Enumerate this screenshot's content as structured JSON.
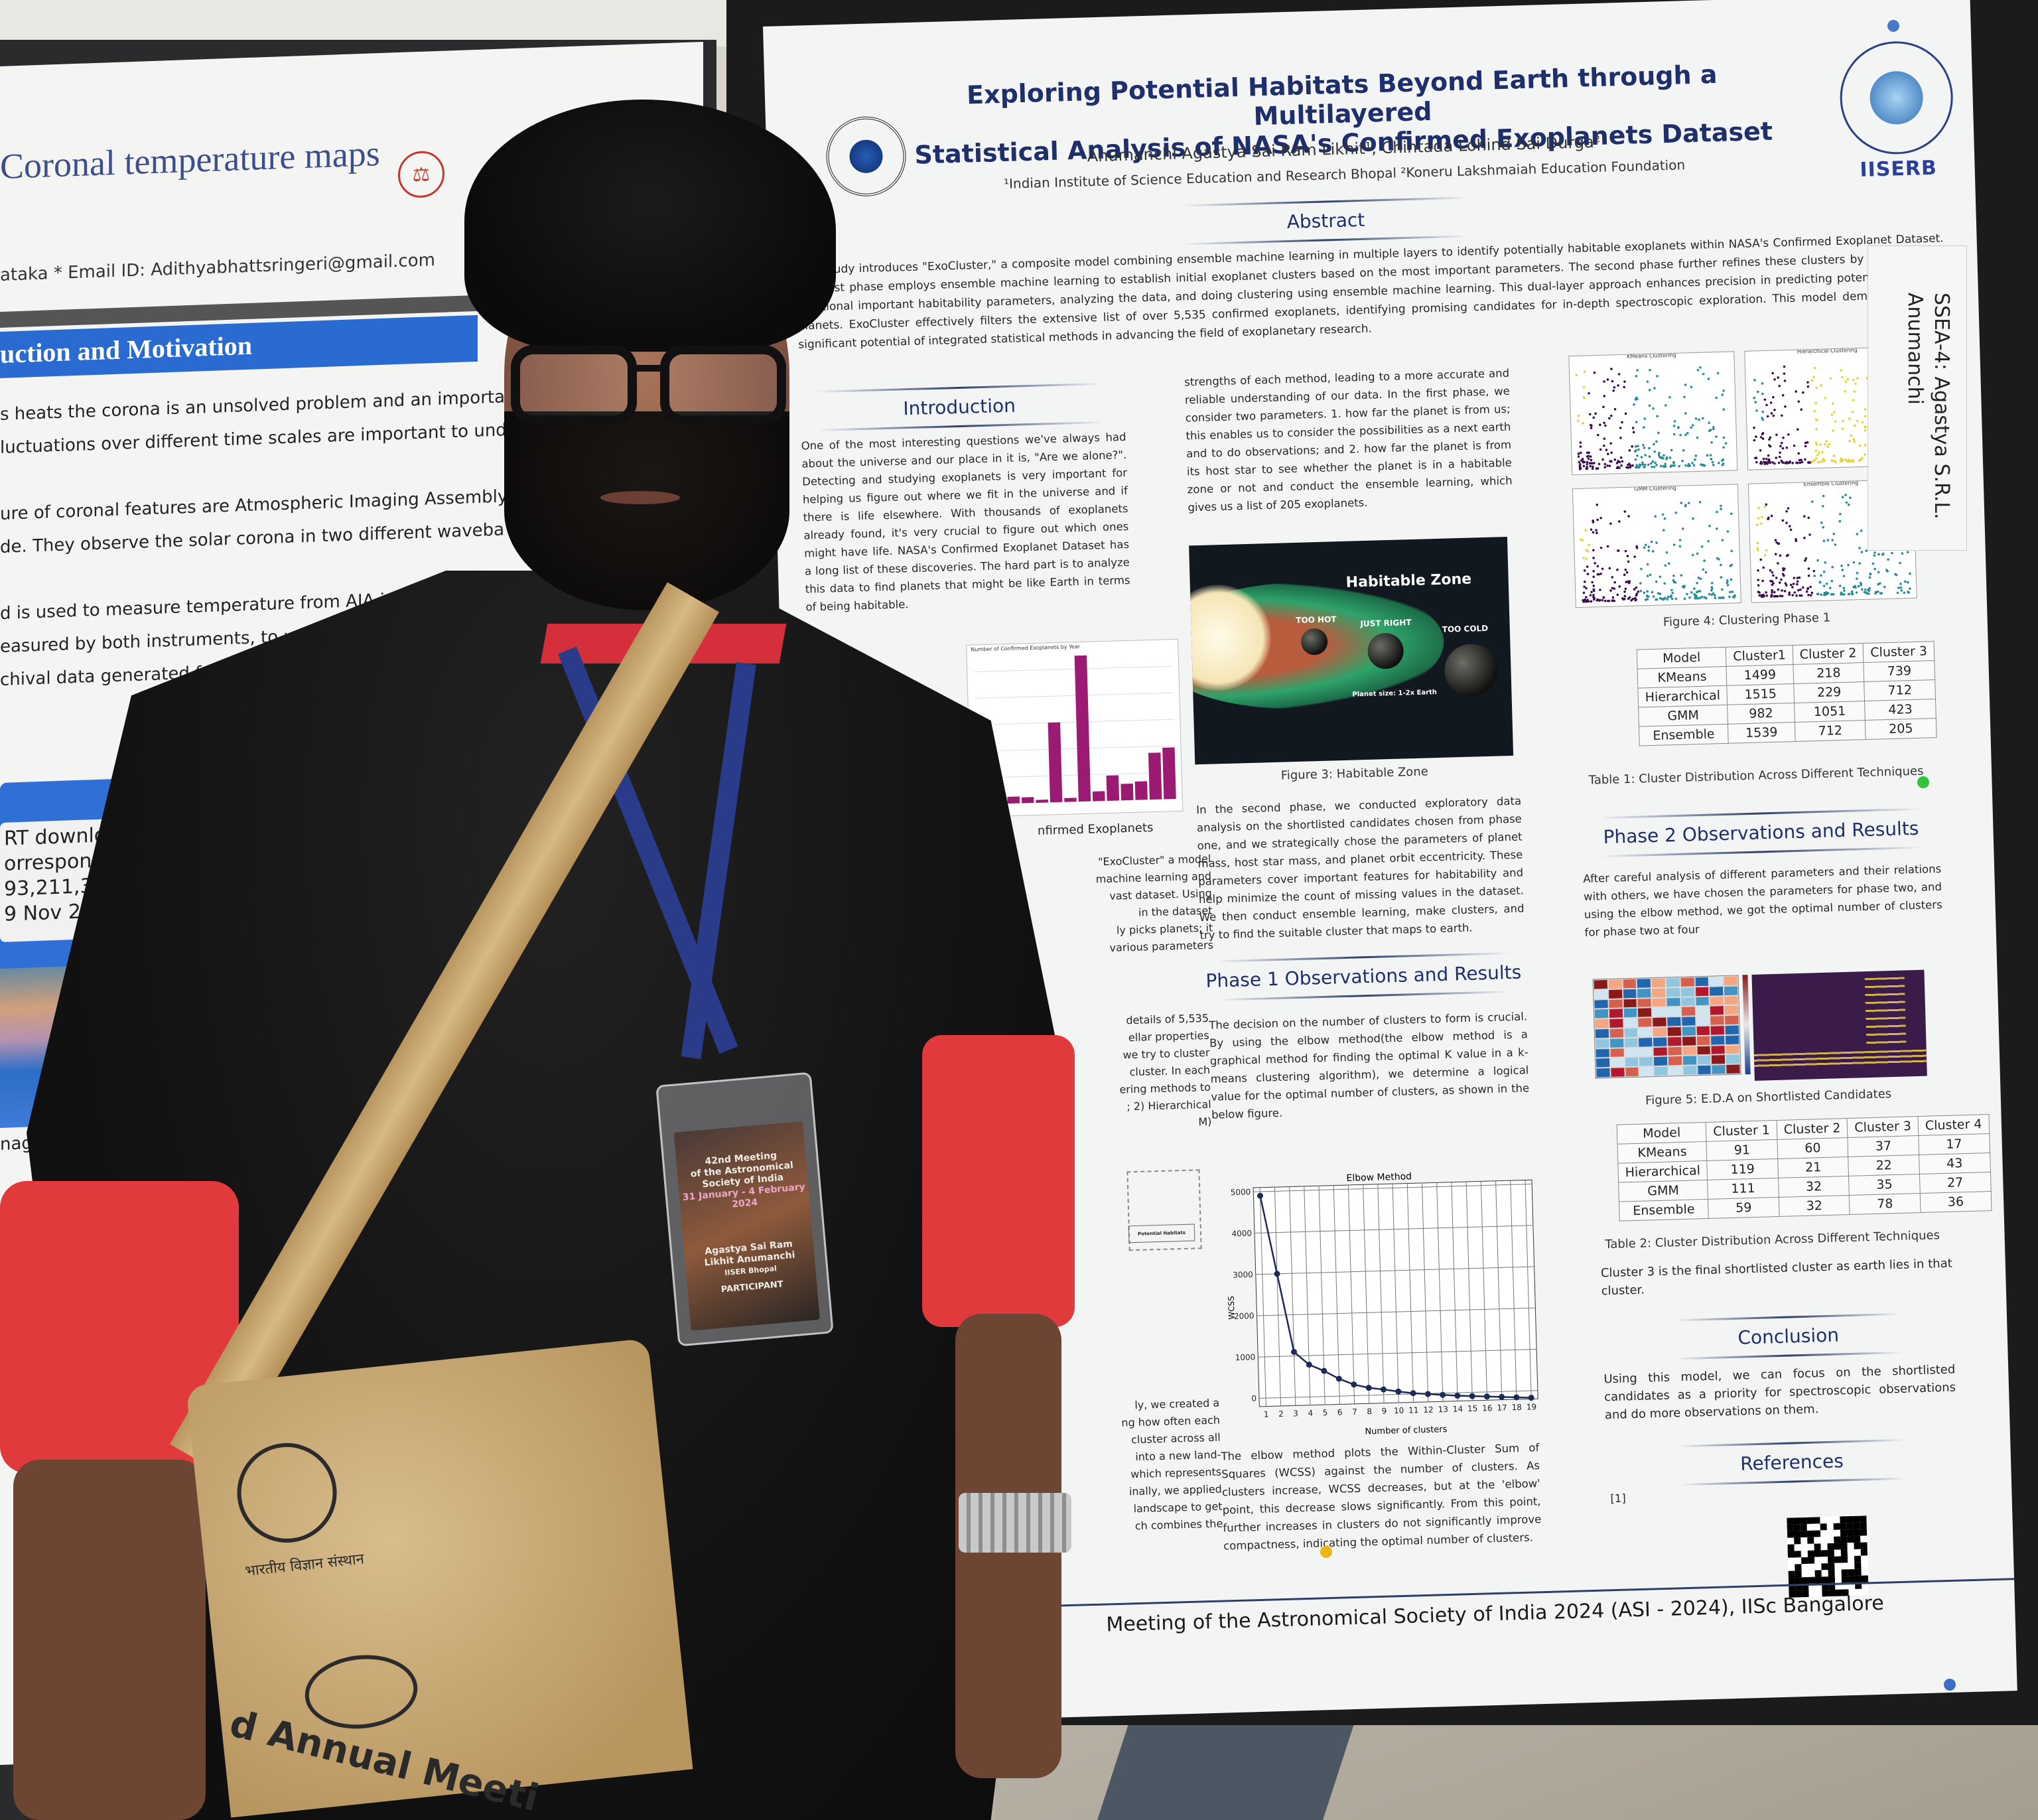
{
  "scene": {
    "description": "Person standing in front of a scientific poster at an astronomy conference poster session",
    "colors": {
      "poster_heading": "#1f2f6b",
      "shirt_black": "#121212",
      "sleeve_red": "#e03a3d",
      "lanyard_blue": "#2a3b8a",
      "bag_jute": "#c9a670",
      "left_poster_blue_band": "#2a6bd1"
    }
  },
  "left_poster": {
    "title": "Coronal temperature maps",
    "email_line": "ataka  * Email ID: Adithyabhattsringeri@gmail.com",
    "section_heading": "uction and Motivation",
    "body_lines": [
      "s heats the corona is an unsolved problem and an important area of",
      "luctuations over different time scales are important to understand the",
      "",
      "ure of coronal features are  Atmospheric Imaging Assembly (AIA) onbo",
      "de. They observe the solar corona in two different wavebands; AIA in E",
      "",
      "d is used to measure temperature from AIA images, whereas with XRT",
      "easured by both instruments, to understand the limits and",
      "chival data generated from the filter ratio method"
    ],
    "callout_lines": [
      "RT downloaded",
      "orresponding",
      "93,211,335)",
      "9 Nov 2021"
    ],
    "image_caption": "nage"
  },
  "poster": {
    "title_line1": "Exploring Potential Habitats Beyond Earth through a Multilayered",
    "title_line2": "Statistical Analysis of NASA's Confirmed Exoplanets Dataset",
    "authors": "Anumanchi Agastya Sai Ram Likhit¹, Chintada Lohind Sai Durga²",
    "affiliations": "¹Indian Institute of Science Education and Research Bhopal ²Koneru Lakshmaiah Education Foundation",
    "logo_right_text": "IISERB",
    "abstract": {
      "heading": "Abstract",
      "text": "This study introduces \"ExoCluster,\" a composite model combining ensemble machine learning in multiple layers to identify potentially habitable exoplanets within NASA's Confirmed Exoplanet Dataset. The first phase employs ensemble machine learning to establish initial exoplanet clusters based on the most important parameters. The second phase further refines these clusters by incorporating additional important habitability parameters, analyzing the data, and doing clustering using ensemble machine learning. This dual-layer approach enhances precision in predicting potential habitable planets. ExoCluster effectively filters the extensive list of over 5,535 confirmed exoplanets, identifying promising candidates for in-depth spectroscopic exploration. This model demonstrates the significant potential of integrated statistical methods in advancing the field of exoplanetary research."
    },
    "introduction": {
      "heading": "Introduction",
      "text": "One of the most interesting questions we've always had about the universe and our place in it is, \"Are we alone?\". Detecting and studying exoplanets is very important for helping us figure out where we fit in the universe and if there is life elsewhere. With thousands of exoplanets already found, it's very crucial to figure out which ones might have life. NASA's Confirmed Exoplanet Dataset has a long list of these discoveries. The hard part is to analyze this data to find planets that might be like Earth in terms of being habitable."
    },
    "fig2": {
      "title": "Number of Confirmed Exoplanets by Year",
      "caption_fragment": "nfirmed Exoplanets",
      "bar_color": "#9b1b72"
    },
    "method_fragment_lines": [
      "\"ExoCluster\" a model",
      "machine learning and",
      "vast dataset. Using",
      "in the dataset",
      "ly picks planets; it",
      "various parameters"
    ],
    "method_fragment_lines2": [
      "details of 5,535",
      "ellar properties",
      "we try to cluster",
      "cluster. In each",
      "ering methods to",
      "; 2) Hierarchical",
      "M)"
    ],
    "flow_diagram_label": "Potential Habitats",
    "method_fragment_lines3": [
      "ly, we created a",
      "ng how often each",
      "cluster across all",
      "into a new land-",
      "which represents",
      "inally, we applied",
      "landscape to get",
      "ch combines the"
    ],
    "col2_top_text": "strengths of each method, leading to a more accurate and reliable understanding of our data. In the first phase, we consider two parameters. 1. how far the planet is from us; this enables us to consider the possibilities as a next earth and to do observations; and 2. how far the planet is from its host star to see whether the planet is in a habitable zone or not and conduct the ensemble learning, which gives us a list of 205 exoplanets.",
    "fig3": {
      "title": "Habitable Zone",
      "labels": [
        "TOO HOT",
        "JUST RIGHT",
        "TOO COLD"
      ],
      "scale_label": "Planet size: 1-2x Earth",
      "caption": "Figure 3: Habitable Zone"
    },
    "phase2_intro_text": "In the second phase, we conducted exploratory data analysis on the shortlisted candidates chosen from phase one, and we strategically chose the parameters of planet mass, host star mass, and planet orbit eccentricity. These parameters cover important features for habitability and help minimize the count of missing values in the dataset. We then conduct ensemble learning, make clusters, and try to find the suitable cluster that maps to earth.",
    "phase1": {
      "heading": "Phase 1 Observations and Results",
      "text": "The decision on the number of clusters to form is crucial. By using the elbow method(the elbow method is a graphical method for finding the optimal K value in a k-means clustering algorithm), we determine a logical value for the optimal number of clusters, as shown in the below figure.",
      "after_chart_text": "The elbow method plots the Within-Cluster Sum of Squares (WCSS) against the number of clusters. As clusters increase, WCSS decreases, but at the 'elbow' point, this decrease slows significantly. From this point, further increases in clusters do not significantly improve compactness, indicating the optimal number of clusters."
    },
    "fig4": {
      "subplots": [
        "KMeans Clustering",
        "Hierarchical Clustering",
        "GMM Clustering",
        "Ensemble Clustering"
      ],
      "caption": "Figure 4: Clustering Phase 1",
      "cluster_colors": [
        "#3b0f4f",
        "#2a8a9a",
        "#e6d23a"
      ]
    },
    "table1": {
      "headers": [
        "Model",
        "Cluster1",
        "Cluster 2",
        "Cluster 3"
      ],
      "rows": [
        [
          "KMeans",
          "1499",
          "218",
          "739"
        ],
        [
          "Hierarchical",
          "1515",
          "229",
          "712"
        ],
        [
          "GMM",
          "982",
          "1051",
          "423"
        ],
        [
          "Ensemble",
          "1539",
          "712",
          "205"
        ]
      ],
      "caption": "Table 1: Cluster Distribution Across Different Techniques"
    },
    "phase2": {
      "heading": "Phase 2 Observations and Results",
      "text": "After careful analysis of different parameters and their relations with others, we have chosen the parameters for phase two, and using the elbow method, we got the optimal number of clusters for phase two at four",
      "fig5_caption": "Figure 5: E.D.A on Shortlisted Candidates"
    },
    "table2": {
      "headers": [
        "Model",
        "Cluster 1",
        "Cluster 2",
        "Cluster 3",
        "Cluster 4"
      ],
      "rows": [
        [
          "KMeans",
          "91",
          "60",
          "37",
          "17"
        ],
        [
          "Hierarchical",
          "119",
          "21",
          "22",
          "43"
        ],
        [
          "GMM",
          "111",
          "32",
          "35",
          "27"
        ],
        [
          "Ensemble",
          "59",
          "32",
          "78",
          "36"
        ]
      ],
      "caption": "Table 2: Cluster Distribution Across Different Techniques",
      "note": "Cluster 3 is the final shortlisted cluster as earth lies in that cluster."
    },
    "conclusion": {
      "heading": "Conclusion",
      "text": "Using this model, we can focus on the shortlisted candidates as a priority for spectroscopic observations and do more observations on them."
    },
    "references": {
      "heading": "References",
      "items": [
        "[1]"
      ]
    },
    "footer": "Meeting of the Astronomical Society of India 2024 (ASI - 2024), IISc Bangalore"
  },
  "name_tag_card": {
    "line1": "SSEA-4: Agastya S.R.L.",
    "line2": "Anumanchi"
  },
  "badge": {
    "event_line1": "42nd Meeting",
    "event_line2": "of the Astronomical",
    "event_line3": "Society of India",
    "dates": "31 January - 4 February 2024",
    "name_line1": "Agastya Sai Ram",
    "name_line2": "Likhit Anumanchi",
    "institute": "IISER Bhopal",
    "role": "PARTICIPANT"
  },
  "bag": {
    "text": "d Annual Meeti",
    "hindi_text": "भारतीय विज्ञान संस्थान"
  },
  "chart_data": [
    {
      "type": "line",
      "title": "Elbow Method",
      "xlabel": "Number of clusters",
      "ylabel": "WCSS",
      "x": [
        1,
        2,
        3,
        4,
        5,
        6,
        7,
        8,
        9,
        10,
        11,
        12,
        13,
        14,
        15,
        16,
        17,
        18,
        19
      ],
      "values": [
        4900,
        3000,
        1100,
        780,
        620,
        420,
        270,
        180,
        130,
        70,
        20,
        -10,
        -40,
        -70,
        -90,
        -110,
        -130,
        -150,
        -170
      ],
      "yticks": [
        0,
        1000,
        2000,
        3000,
        4000,
        5000
      ],
      "ylim": [
        -200,
        5100
      ],
      "grid": true
    },
    {
      "type": "bar",
      "title": "Number of Confirmed Exoplanets by Year",
      "values": [
        30,
        70,
        70,
        60,
        30,
        820,
        40,
        1500,
        100,
        260,
        170,
        190,
        480,
        530
      ],
      "grid": true
    },
    {
      "type": "table",
      "title": "Table 1: Cluster Distribution Across Different Techniques",
      "categories": [
        "KMeans",
        "Hierarchical",
        "GMM",
        "Ensemble"
      ],
      "series": [
        {
          "name": "Cluster1",
          "values": [
            1499,
            1515,
            982,
            1539
          ]
        },
        {
          "name": "Cluster 2",
          "values": [
            218,
            229,
            1051,
            712
          ]
        },
        {
          "name": "Cluster 3",
          "values": [
            739,
            712,
            423,
            205
          ]
        }
      ]
    },
    {
      "type": "table",
      "title": "Table 2: Cluster Distribution Across Different Techniques",
      "categories": [
        "KMeans",
        "Hierarchical",
        "GMM",
        "Ensemble"
      ],
      "series": [
        {
          "name": "Cluster 1",
          "values": [
            91,
            119,
            111,
            59
          ]
        },
        {
          "name": "Cluster 2",
          "values": [
            60,
            21,
            32,
            32
          ]
        },
        {
          "name": "Cluster 3",
          "values": [
            37,
            22,
            35,
            78
          ]
        },
        {
          "name": "Cluster 4",
          "values": [
            17,
            43,
            27,
            36
          ]
        }
      ]
    }
  ]
}
